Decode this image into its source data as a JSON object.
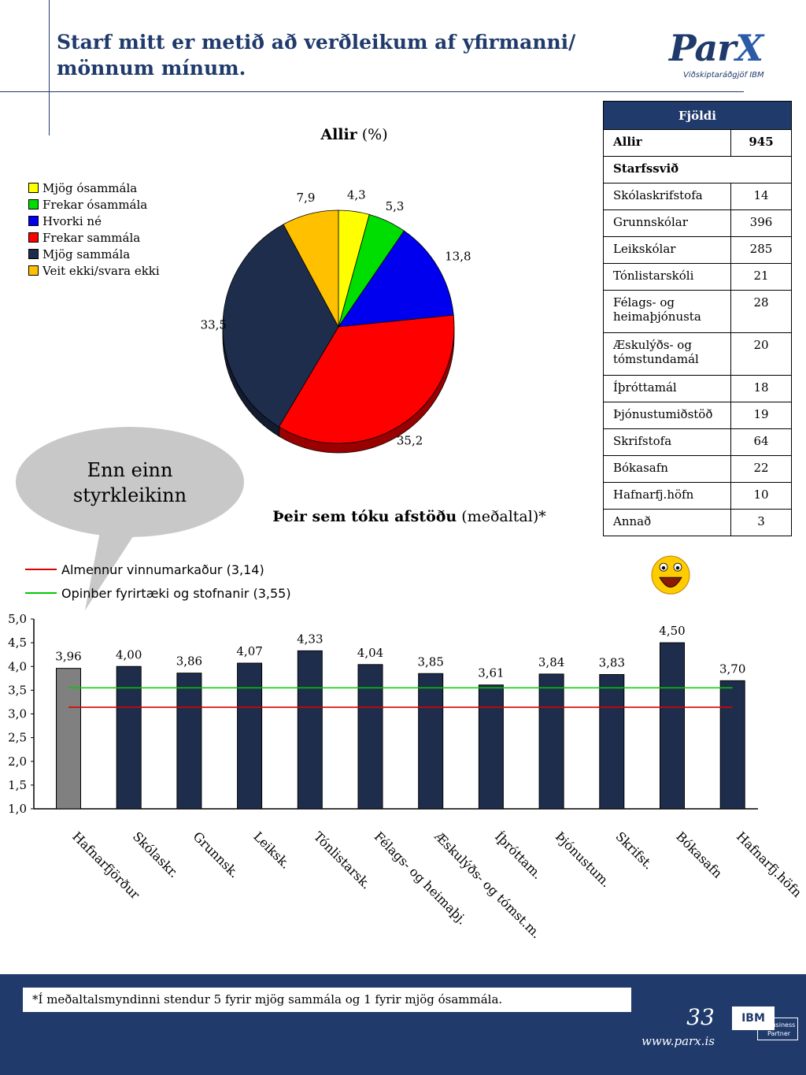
{
  "header": {
    "title": "Starf mitt er metið að verðleikum af yfirmanni/ mönnum mínum.",
    "logo_main_1": "Par",
    "logo_main_2": "X",
    "logo_sub": "Viðskiptaráðgjöf IBM"
  },
  "colors": {
    "brand_navy": "#1f3a6b",
    "yellow": "#ffff00",
    "green": "#00dd00",
    "blue": "#0000ee",
    "red": "#ff0000",
    "navy": "#1f2d4d",
    "orange": "#ffc000",
    "bar_gray": "#808080",
    "line_red": "#dd0000",
    "line_green": "#00cc00"
  },
  "callout": {
    "text": "Enn einn styrkleikinn"
  },
  "table": {
    "header": "Fjöldi",
    "total_label": "Allir",
    "total_value": "945",
    "section": "Starfssvið",
    "rows": [
      {
        "label": "Skólaskrifstofa",
        "value": "14"
      },
      {
        "label": "Grunnskólar",
        "value": "396"
      },
      {
        "label": "Leikskólar",
        "value": "285"
      },
      {
        "label": "Tónlistarskóli",
        "value": "21"
      },
      {
        "label": "Félags- og heimaþjónusta",
        "value": "28"
      },
      {
        "label": "Æskulýðs- og tómstundamál",
        "value": "20"
      },
      {
        "label": "Íþróttamál",
        "value": "18"
      },
      {
        "label": "Þjónustumiðstöð",
        "value": "19"
      },
      {
        "label": "Skrifstofa",
        "value": "64"
      },
      {
        "label": "Bókasafn",
        "value": "22"
      },
      {
        "label": "Hafnarfj.höfn",
        "value": "10"
      },
      {
        "label": "Annað",
        "value": "3"
      }
    ]
  },
  "footer": {
    "footnote": "*Í meðaltalsmyndinni stendur 5 fyrir mjög sammála og 1 fyrir mjög ósammála.",
    "page": "33",
    "url": "www.parx.is",
    "badge_main": "IBM",
    "badge_sub_1": "Business",
    "badge_sub_2": "Partner"
  },
  "chart_data": [
    {
      "type": "pie",
      "title_bold": "Allir",
      "title_rest": " (%)",
      "legend_position": "left",
      "categories": [
        "Mjög ósammála",
        "Frekar ósammála",
        "Hvorki né",
        "Frekar sammála",
        "Mjög sammála",
        "Veit ekki/svara ekki"
      ],
      "values": [
        4.3,
        5.3,
        13.8,
        35.2,
        33.5,
        7.9
      ],
      "labels": [
        "4,3",
        "5,3",
        "13,8",
        "35,2",
        "33,5",
        "7,9"
      ],
      "colors": [
        "#ffff00",
        "#00dd00",
        "#0000ee",
        "#ff0000",
        "#1f2d4d",
        "#ffc000"
      ]
    },
    {
      "type": "bar",
      "title_bold": "Þeir sem tóku afstöðu",
      "title_rest": " (meðaltal)*",
      "categories": [
        "Hafnarfjörður",
        "Skólaskr.",
        "Grunnsk.",
        "Leiksk.",
        "Tónlistarsk.",
        "Félags- og heimaþj.",
        "Æskulýðs- og tómst.m.",
        "Íþróttam.",
        "Þjónustum.",
        "Skrifst.",
        "Bókasafn",
        "Hafnarfj.höfn"
      ],
      "values": [
        3.96,
        4.0,
        3.86,
        4.07,
        4.33,
        4.04,
        3.85,
        3.61,
        3.84,
        3.83,
        4.5,
        3.7
      ],
      "labels": [
        "3,96",
        "4,00",
        "3,86",
        "4,07",
        "4,33",
        "4,04",
        "3,85",
        "3,61",
        "3,84",
        "3,83",
        "4,50",
        "3,70"
      ],
      "bar_colors": [
        "#808080",
        "#1f2d4d",
        "#1f2d4d",
        "#1f2d4d",
        "#1f2d4d",
        "#1f2d4d",
        "#1f2d4d",
        "#1f2d4d",
        "#1f2d4d",
        "#1f2d4d",
        "#1f2d4d",
        "#1f2d4d"
      ],
      "ylim": [
        1.0,
        5.0
      ],
      "yticks": [
        1.0,
        1.5,
        2.0,
        2.5,
        3.0,
        3.5,
        4.0,
        4.5,
        5.0
      ],
      "ytick_labels": [
        "1,0",
        "1,5",
        "2,0",
        "2,5",
        "3,0",
        "3,5",
        "4,0",
        "4,5",
        "5,0"
      ],
      "reference_lines": [
        {
          "name": "Almennur vinnumarkaður (3,14)",
          "value": 3.14,
          "color": "#dd0000"
        },
        {
          "name": "Opinber fyrirtæki og stofnanir (3,55)",
          "value": 3.55,
          "color": "#00cc00"
        }
      ],
      "highlight_icon": "smiley-face-icon",
      "highlight_index": 10
    }
  ]
}
